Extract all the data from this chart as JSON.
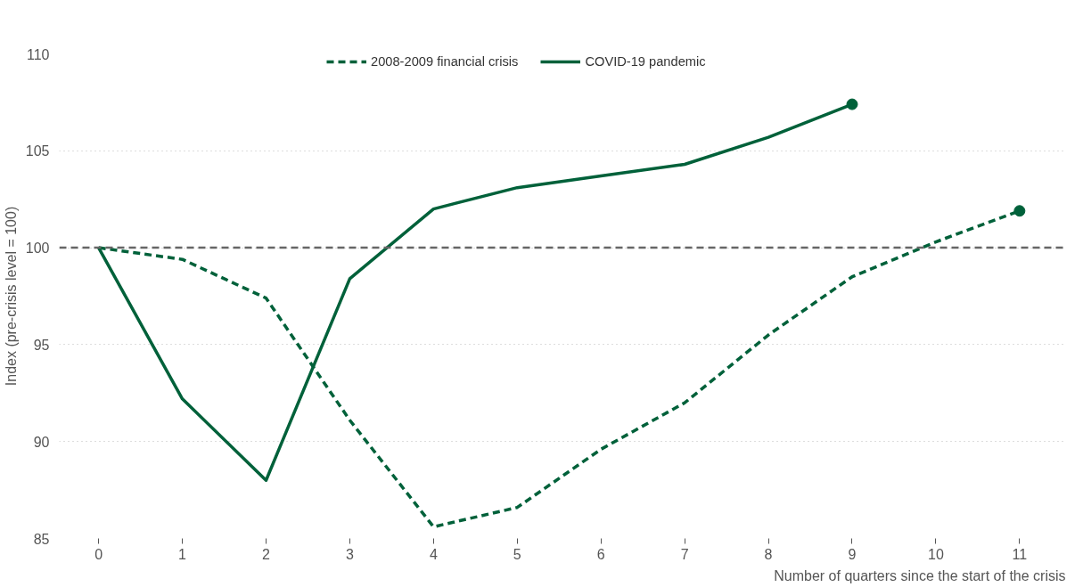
{
  "chart_data": {
    "type": "line",
    "xlabel": "Number of quarters since the start of the crisis",
    "ylabel": "Index (pre-crisis level = 100)",
    "x": [
      0,
      1,
      2,
      3,
      4,
      5,
      6,
      7,
      8,
      9,
      10,
      11
    ],
    "series": [
      {
        "name": "2008-2009 financial crisis",
        "color": "#00613a",
        "line_style": "dashed",
        "values": [
          100,
          99.4,
          97.4,
          91.1,
          85.6,
          86.6,
          89.6,
          92.0,
          95.5,
          98.5,
          100.3,
          101.9
        ]
      },
      {
        "name": "COVID-19 pandemic",
        "color": "#00613a",
        "line_style": "solid",
        "x": [
          0,
          1,
          2,
          3,
          4,
          5,
          6,
          7,
          8,
          9
        ],
        "values": [
          100,
          92.2,
          88.0,
          98.4,
          102.0,
          103.1,
          103.7,
          104.3,
          105.7,
          107.4
        ]
      },
      {
        "type": "scatter",
        "color": "#00613a",
        "marker": "circle",
        "x": [
          9
        ],
        "values": [
          107.4
        ]
      },
      {
        "type": "scatter",
        "color": "#00613a",
        "marker": "circle",
        "x": [
          11
        ],
        "values": [
          101.9
        ]
      }
    ],
    "xlim": [
      -0.47,
      11.55
    ],
    "xticks": [
      0,
      1,
      2,
      3,
      4,
      5,
      6,
      7,
      8,
      9,
      10,
      11
    ],
    "ylim": [
      85,
      110
    ],
    "yticks": [
      85,
      90,
      95,
      100,
      105,
      110
    ],
    "ref_lines": [
      {
        "axis": "y",
        "value": 100,
        "color": "#666666",
        "line_style": "dashed"
      }
    ],
    "grid": "y",
    "legend": "top",
    "marker": "none"
  }
}
